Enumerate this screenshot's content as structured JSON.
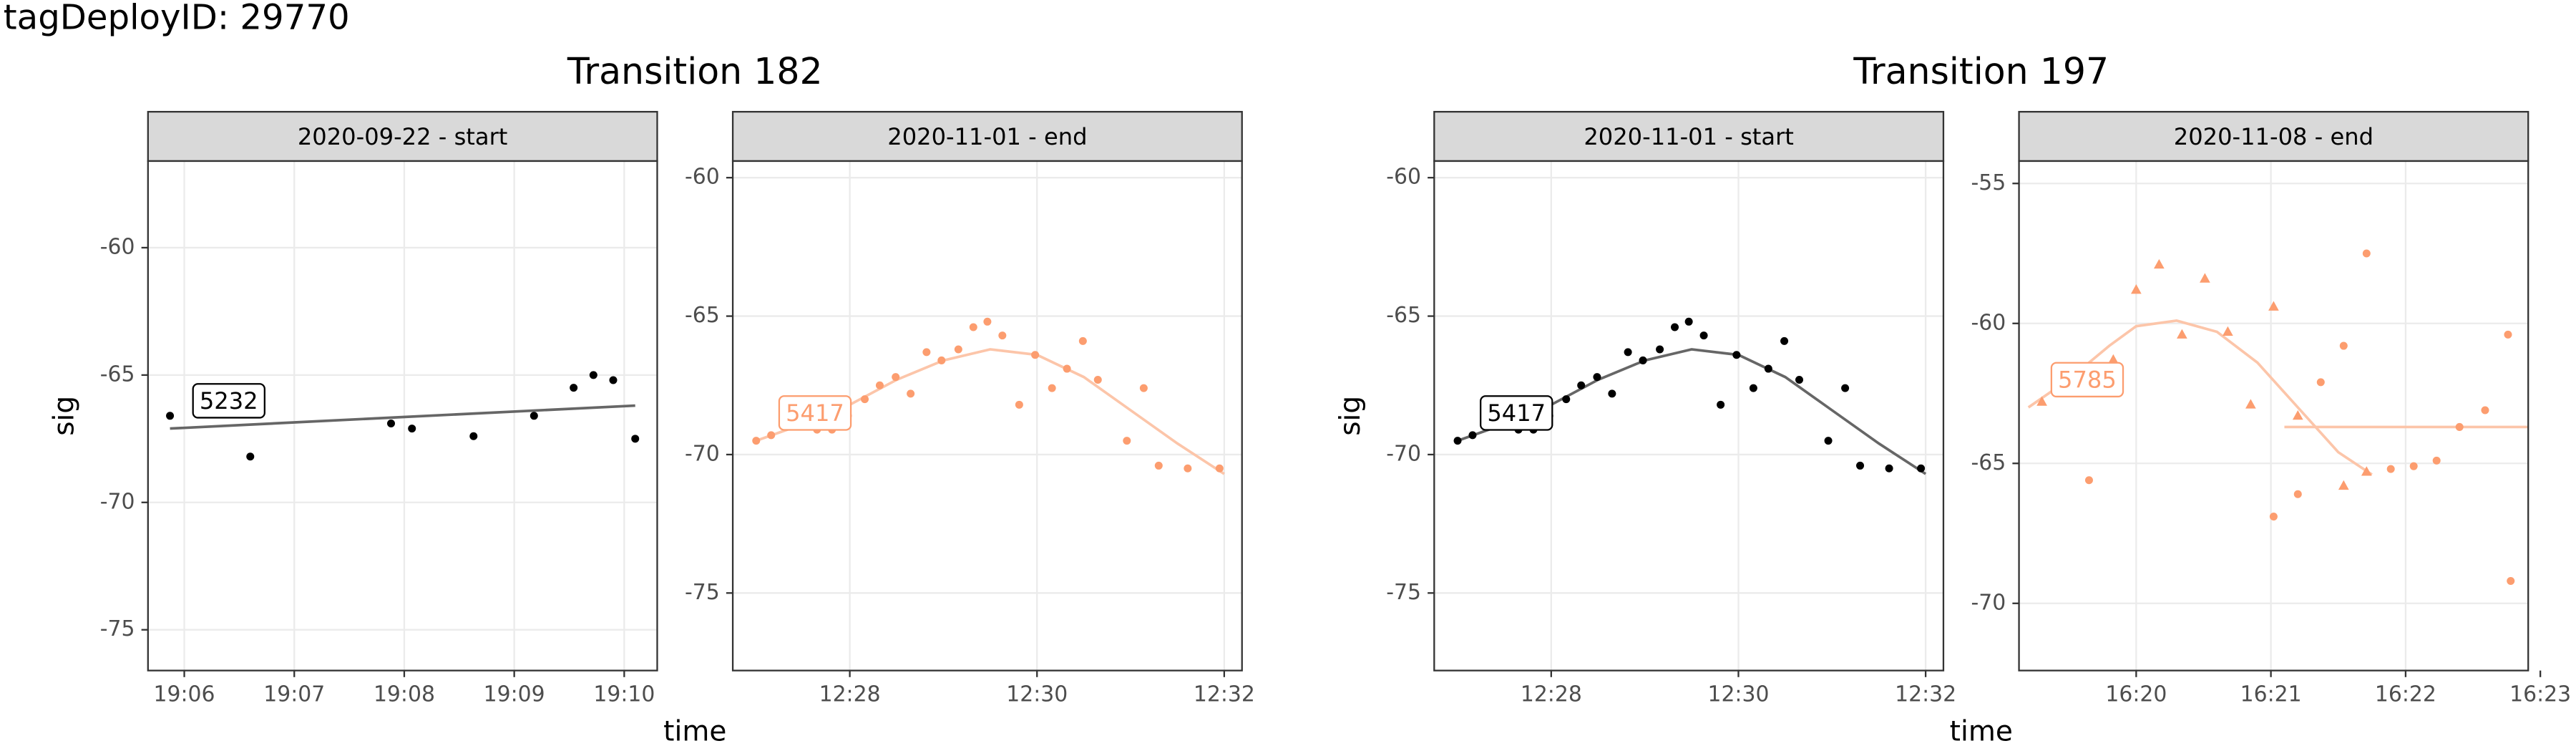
{
  "page_title": "tagDeployID: 29770",
  "transitions": [
    {
      "title": "Transition 182",
      "x_label": "time",
      "y_label": "sig"
    },
    {
      "title": "Transition 197",
      "x_label": "time",
      "y_label": "sig"
    }
  ],
  "chart_data": [
    {
      "type": "scatter",
      "strip": "2020-09-22 - start",
      "label": "5232",
      "label_color": "#000000",
      "xlim": [
        1145.67,
        1150.3
      ],
      "xticks": [
        {
          "value": 1146,
          "label": "19:06"
        },
        {
          "value": 1147,
          "label": "19:07"
        },
        {
          "value": 1148,
          "label": "19:08"
        },
        {
          "value": 1149,
          "label": "19:09"
        },
        {
          "value": 1150,
          "label": "19:10"
        }
      ],
      "ylim": [
        -76.6,
        -56.6
      ],
      "yticks": [
        -75,
        -70,
        -65,
        -60
      ],
      "grid": true,
      "series": [
        {
          "mode": "line",
          "color": "#666666",
          "x": [
            1145.87,
            1150.1
          ],
          "values": [
            -67.1,
            -66.2
          ]
        },
        {
          "mode": "points",
          "marker": "circle",
          "color": "#000000",
          "x": [
            1145.87,
            1146.6,
            1147.88,
            1148.07,
            1148.63,
            1149.18,
            1149.54,
            1149.72,
            1149.9,
            1150.1
          ],
          "values": [
            -66.6,
            -68.2,
            -66.9,
            -67.1,
            -67.4,
            -66.6,
            -65.5,
            -65.0,
            -65.2,
            -67.5
          ]
        }
      ]
    },
    {
      "type": "scatter",
      "strip": "2020-11-01 - end",
      "label": "5417",
      "label_color": "#fc9d6f",
      "xlim": [
        746.75,
        752.19
      ],
      "xticks": [
        {
          "value": 748,
          "label": "12:28"
        },
        {
          "value": 750,
          "label": "12:30"
        },
        {
          "value": 752,
          "label": "12:32"
        }
      ],
      "ylim": [
        -77.8,
        -59.4
      ],
      "yticks": [
        -75,
        -70,
        -65,
        -60
      ],
      "grid": true,
      "series": [
        {
          "mode": "line",
          "color": "#fcc5a9",
          "x": [
            747.0,
            747.5,
            748.0,
            748.5,
            749.0,
            749.5,
            750.0,
            750.5,
            751.0,
            751.5,
            752.0
          ],
          "values": [
            -69.5,
            -68.9,
            -68.2,
            -67.3,
            -66.6,
            -66.2,
            -66.4,
            -67.2,
            -68.4,
            -69.6,
            -70.7
          ]
        },
        {
          "mode": "points",
          "marker": "circle",
          "color": "#fc9d6f",
          "x": [
            747.0,
            747.16,
            747.32,
            747.47,
            747.65,
            747.81,
            747.98,
            748.16,
            748.32,
            748.49,
            748.65,
            748.82,
            748.98,
            749.16,
            749.32,
            749.47,
            749.63,
            749.81,
            749.98,
            750.16,
            750.32,
            750.49,
            750.65,
            750.96,
            751.14,
            751.3,
            751.61,
            751.95
          ],
          "values": [
            -69.5,
            -69.3,
            -68.8,
            -68.6,
            -69.1,
            -69.1,
            -68.6,
            -68.0,
            -67.5,
            -67.2,
            -67.8,
            -66.3,
            -66.6,
            -66.2,
            -65.4,
            -65.2,
            -65.7,
            -68.2,
            -66.4,
            -67.6,
            -66.9,
            -65.9,
            -67.3,
            -69.5,
            -67.6,
            -70.4,
            -70.5,
            -70.5
          ]
        }
      ]
    },
    {
      "type": "scatter",
      "strip": "2020-11-01 - start",
      "label": "5417",
      "label_color": "#000000",
      "xlim": [
        746.75,
        752.19
      ],
      "xticks": [
        {
          "value": 748,
          "label": "12:28"
        },
        {
          "value": 750,
          "label": "12:30"
        },
        {
          "value": 752,
          "label": "12:32"
        }
      ],
      "ylim": [
        -77.8,
        -59.4
      ],
      "yticks": [
        -75,
        -70,
        -65,
        -60
      ],
      "grid": true,
      "series": [
        {
          "mode": "line",
          "color": "#666666",
          "x": [
            747.0,
            747.5,
            748.0,
            748.5,
            749.0,
            749.5,
            750.0,
            750.5,
            751.0,
            751.5,
            752.0
          ],
          "values": [
            -69.5,
            -68.9,
            -68.2,
            -67.3,
            -66.6,
            -66.2,
            -66.4,
            -67.2,
            -68.4,
            -69.6,
            -70.7
          ]
        },
        {
          "mode": "points",
          "marker": "circle",
          "color": "#000000",
          "x": [
            747.0,
            747.16,
            747.32,
            747.47,
            747.65,
            747.81,
            747.98,
            748.16,
            748.32,
            748.49,
            748.65,
            748.82,
            748.98,
            749.16,
            749.32,
            749.47,
            749.63,
            749.81,
            749.98,
            750.16,
            750.32,
            750.49,
            750.65,
            750.96,
            751.14,
            751.3,
            751.61,
            751.95
          ],
          "values": [
            -69.5,
            -69.3,
            -68.8,
            -68.6,
            -69.1,
            -69.1,
            -68.6,
            -68.0,
            -67.5,
            -67.2,
            -67.8,
            -66.3,
            -66.6,
            -66.2,
            -65.4,
            -65.2,
            -65.7,
            -68.2,
            -66.4,
            -67.6,
            -66.9,
            -65.9,
            -67.3,
            -69.5,
            -67.6,
            -70.4,
            -70.5,
            -70.5
          ]
        }
      ]
    },
    {
      "type": "scatter",
      "strip": "2020-11-08 - end",
      "label": "5785",
      "label_color": "#fc9d6f",
      "xlim": [
        979.13,
        982.91
      ],
      "xticks": [
        {
          "value": 980,
          "label": "16:20"
        },
        {
          "value": 981,
          "label": "16:21"
        },
        {
          "value": 982,
          "label": "16:22"
        },
        {
          "value": 983,
          "label": "16:23"
        }
      ],
      "ylim": [
        -72.4,
        -54.2
      ],
      "yticks": [
        -70,
        -65,
        -60,
        -55
      ],
      "grid": true,
      "series": [
        {
          "mode": "line",
          "color": "#fcc5a9",
          "x": [
            979.2,
            979.5,
            979.8,
            980.0,
            980.3,
            980.6,
            980.9,
            981.2,
            981.5,
            981.75
          ],
          "values": [
            -63.0,
            -62.0,
            -60.8,
            -60.1,
            -59.9,
            -60.3,
            -61.4,
            -63.0,
            -64.6,
            -65.4
          ]
        },
        {
          "mode": "line",
          "color": "#fcc5a9",
          "x": [
            981.1,
            982.91
          ],
          "values": [
            -63.7,
            -63.7
          ]
        },
        {
          "mode": "points",
          "marker": "triangle",
          "color": "#fc9d6f",
          "x": [
            979.3,
            979.48,
            979.83,
            980.0,
            980.17,
            980.34,
            980.51,
            980.68,
            980.85,
            981.02,
            981.2,
            981.54,
            981.71
          ],
          "values": [
            -62.8,
            -61.6,
            -61.3,
            -58.8,
            -57.9,
            -60.4,
            -58.4,
            -60.3,
            -62.9,
            -59.4,
            -63.3,
            -65.8,
            -65.3
          ]
        },
        {
          "mode": "points",
          "marker": "circle",
          "color": "#fc9d6f",
          "x": [
            979.65,
            981.02,
            981.2,
            981.37,
            981.54,
            981.71,
            981.89,
            982.06,
            982.23,
            982.4,
            982.59,
            982.76,
            982.78
          ],
          "values": [
            -65.6,
            -66.9,
            -66.1,
            -62.1,
            -60.8,
            -57.5,
            -65.2,
            -65.1,
            -64.9,
            -63.7,
            -63.1,
            -60.4,
            -69.2
          ]
        }
      ]
    }
  ]
}
